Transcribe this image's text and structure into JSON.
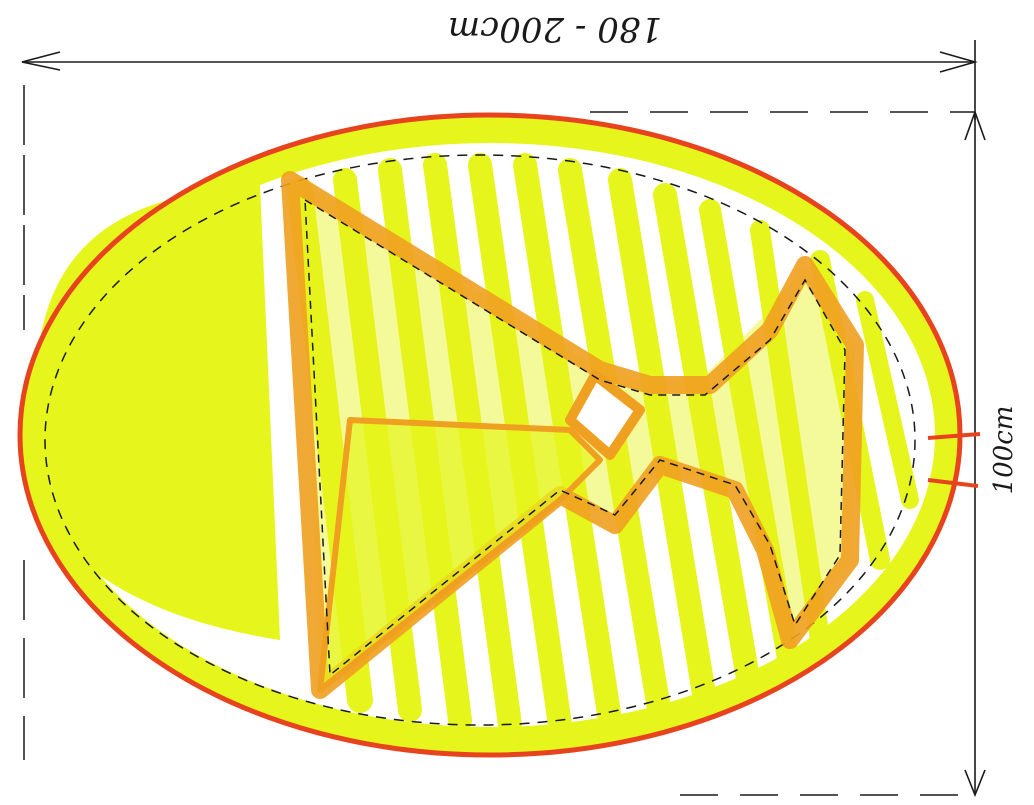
{
  "labels": {
    "width_dimension": "180 - 200cm",
    "height_dimension": "100cm"
  },
  "colors": {
    "ink": "#1a1a1a",
    "outline_red": "#e8431f",
    "fill_yellow": "#e6f51c",
    "accent_orange": "#f0a020",
    "background": "#ffffff"
  }
}
